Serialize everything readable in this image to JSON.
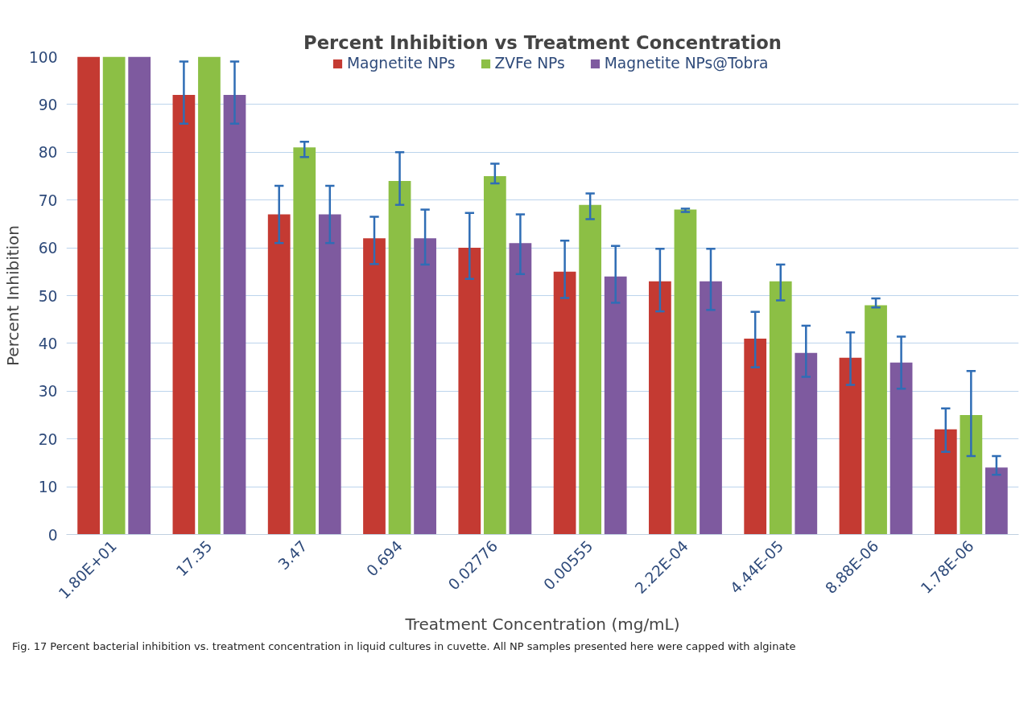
{
  "chart_data": {
    "type": "bar",
    "title": "Percent Inhibition vs Treatment Concentration",
    "xlabel": "Treatment Concentration (mg/mL)",
    "ylabel": "Percent Inhibition",
    "categories": [
      "1.80E+01",
      "17.35",
      "3.47",
      "0.694",
      "0.02776",
      "0.00555",
      "2.22E-04",
      "4.44E-05",
      "8.88E-06",
      "1.78E-06"
    ],
    "series": [
      {
        "name": "Magnetite NPs",
        "color": "#c43a32",
        "values": [
          100,
          92,
          67,
          62,
          60,
          55,
          53,
          41,
          37,
          22
        ],
        "errors": [
          null,
          [
            86,
            99
          ],
          [
            61,
            73
          ],
          [
            56.6,
            66.5
          ],
          [
            53.5,
            67.3
          ],
          [
            49.5,
            61.5
          ],
          [
            46.7,
            59.8
          ],
          [
            35,
            46.6
          ],
          [
            31.3,
            42.3
          ],
          [
            17.3,
            26.4
          ]
        ]
      },
      {
        "name": "ZVFe NPs",
        "color": "#8cbf45",
        "values": [
          100,
          100,
          81,
          74,
          75,
          69,
          68,
          53,
          48,
          25
        ],
        "errors": [
          null,
          null,
          [
            79,
            82.2
          ],
          [
            69,
            80
          ],
          [
            73.5,
            77.6
          ],
          [
            66,
            71.4
          ],
          [
            67.5,
            68.2
          ],
          [
            49,
            56.5
          ],
          [
            47.5,
            49.4
          ],
          [
            16.4,
            34.2
          ]
        ]
      },
      {
        "name": "Magnetite NPs@Tobra",
        "color": "#7e5a9f",
        "values": [
          100,
          92,
          67,
          62,
          61,
          54,
          53,
          38,
          36,
          14
        ],
        "errors": [
          null,
          [
            86,
            99
          ],
          [
            61,
            73
          ],
          [
            56.5,
            68
          ],
          [
            54.5,
            67
          ],
          [
            48.5,
            60.4
          ],
          [
            47,
            59.8
          ],
          [
            33,
            43.7
          ],
          [
            30.5,
            41.4
          ],
          [
            12.5,
            16.4
          ]
        ]
      }
    ],
    "ylim": [
      0,
      100
    ],
    "yticks": [
      0,
      10,
      20,
      30,
      40,
      50,
      60,
      70,
      80,
      90,
      100
    ],
    "grid": "y",
    "legend": "top",
    "annotations": [
      "Fig. 17  Percent bacterial inhibition vs. treatment concentration in liquid cultures in cuvette. All NP samples presented here were capped with alginate"
    ]
  }
}
